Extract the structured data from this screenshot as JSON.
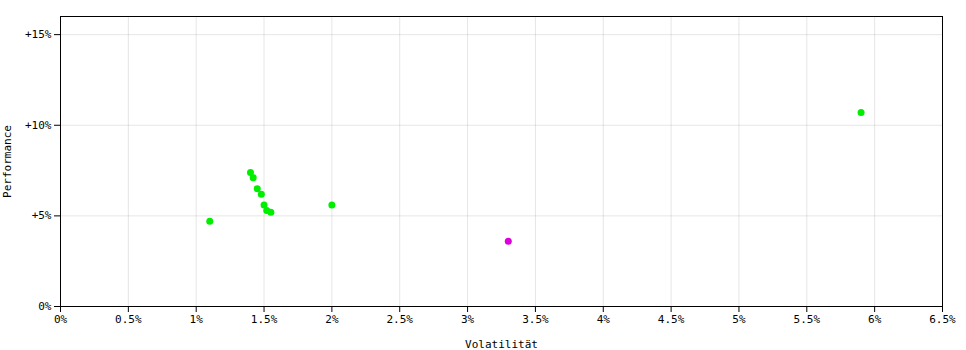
{
  "chart_data": {
    "type": "scatter",
    "xlabel": "Volatilität",
    "ylabel": "Performance",
    "xlim": [
      0.0,
      0.065
    ],
    "ylim": [
      0.0,
      0.16
    ],
    "xticks": [
      {
        "value": 0.0,
        "label": "0%"
      },
      {
        "value": 0.005,
        "label": "0.5%"
      },
      {
        "value": 0.01,
        "label": "1%"
      },
      {
        "value": 0.015,
        "label": "1.5%"
      },
      {
        "value": 0.02,
        "label": "2%"
      },
      {
        "value": 0.025,
        "label": "2.5%"
      },
      {
        "value": 0.03,
        "label": "3%"
      },
      {
        "value": 0.035,
        "label": "3.5%"
      },
      {
        "value": 0.04,
        "label": "4%"
      },
      {
        "value": 0.045,
        "label": "4.5%"
      },
      {
        "value": 0.05,
        "label": "5%"
      },
      {
        "value": 0.055,
        "label": "5.5%"
      },
      {
        "value": 0.06,
        "label": "6%"
      },
      {
        "value": 0.065,
        "label": "6.5%"
      }
    ],
    "yticks": [
      {
        "value": 0.0,
        "label": "0%"
      },
      {
        "value": 0.05,
        "label": "+5%"
      },
      {
        "value": 0.1,
        "label": "+10%"
      },
      {
        "value": 0.15,
        "label": "+15%"
      }
    ],
    "grid": true,
    "series": [
      {
        "color": "#00ee00",
        "x": [
          0.011,
          0.014,
          0.0142,
          0.0145,
          0.0148,
          0.015,
          0.0152,
          0.0155,
          0.02,
          0.059
        ],
        "values": [
          0.047,
          0.074,
          0.071,
          0.065,
          0.062,
          0.056,
          0.053,
          0.052,
          0.056,
          0.107
        ]
      },
      {
        "color": "#dd00dd",
        "x": [
          0.033
        ],
        "values": [
          0.036
        ]
      }
    ]
  }
}
